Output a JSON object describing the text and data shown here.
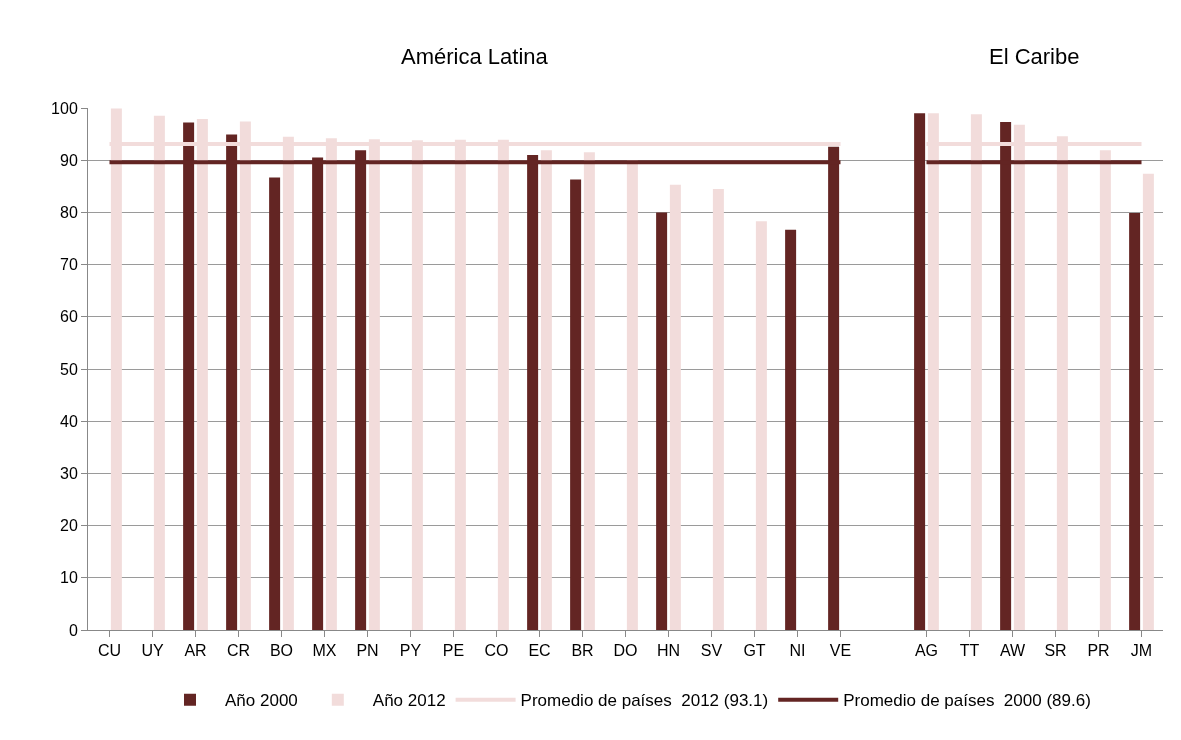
{
  "chart_data": {
    "type": "bar",
    "categories": [
      "CU",
      "UY",
      "AR",
      "CR",
      "BO",
      "MX",
      "PN",
      "PY",
      "PE",
      "CO",
      "EC",
      "BR",
      "DO",
      "HN",
      "SV",
      "GT",
      "NI",
      "VE",
      null,
      "AG",
      "TT",
      "AW",
      "SR",
      "PR",
      "JM"
    ],
    "series": [
      {
        "name": "Año 2000",
        "color": "#632523",
        "values": [
          null,
          null,
          97.2,
          94.9,
          86.7,
          90.5,
          91.9,
          null,
          null,
          null,
          91.0,
          86.3,
          null,
          80.0,
          null,
          null,
          76.7,
          92.6,
          null,
          99.0,
          null,
          97.3,
          null,
          null,
          79.9
        ]
      },
      {
        "name": "Año 2012",
        "color": "#f2dcdb",
        "values": [
          99.9,
          98.5,
          97.9,
          97.4,
          94.5,
          94.2,
          94.0,
          93.8,
          93.9,
          93.9,
          91.9,
          91.5,
          90.0,
          85.3,
          84.5,
          78.3,
          null,
          null,
          null,
          99.0,
          98.8,
          96.8,
          94.6,
          91.9,
          87.4
        ]
      },
      {
        "name": "Promedio de países  2012 (93.1)",
        "type": "line",
        "color": "#f2dcdb",
        "values": [
          93.1,
          93.1,
          93.1,
          93.1,
          93.1,
          93.1,
          93.1,
          93.1,
          93.1,
          93.1,
          93.1,
          93.1,
          93.1,
          93.1,
          93.1,
          93.1,
          93.1,
          93.1,
          null,
          93.1,
          93.1,
          93.1,
          93.1,
          93.1,
          93.1
        ]
      },
      {
        "name": "Promedio de países  2000 (89.6)",
        "type": "line",
        "color": "#632523",
        "values": [
          89.6,
          89.6,
          89.6,
          89.6,
          89.6,
          89.6,
          89.6,
          89.6,
          89.6,
          89.6,
          89.6,
          89.6,
          89.6,
          89.6,
          89.6,
          89.6,
          89.6,
          89.6,
          null,
          89.6,
          89.6,
          89.6,
          89.6,
          89.6,
          89.6
        ]
      }
    ],
    "annotations": [
      "América Latina",
      "El Caribe"
    ],
    "ylim": [
      0,
      100
    ],
    "yticks": [
      0,
      10,
      20,
      30,
      40,
      50,
      60,
      70,
      80,
      90,
      100
    ],
    "grid": "y",
    "legend": "bottom",
    "marker": "none"
  }
}
